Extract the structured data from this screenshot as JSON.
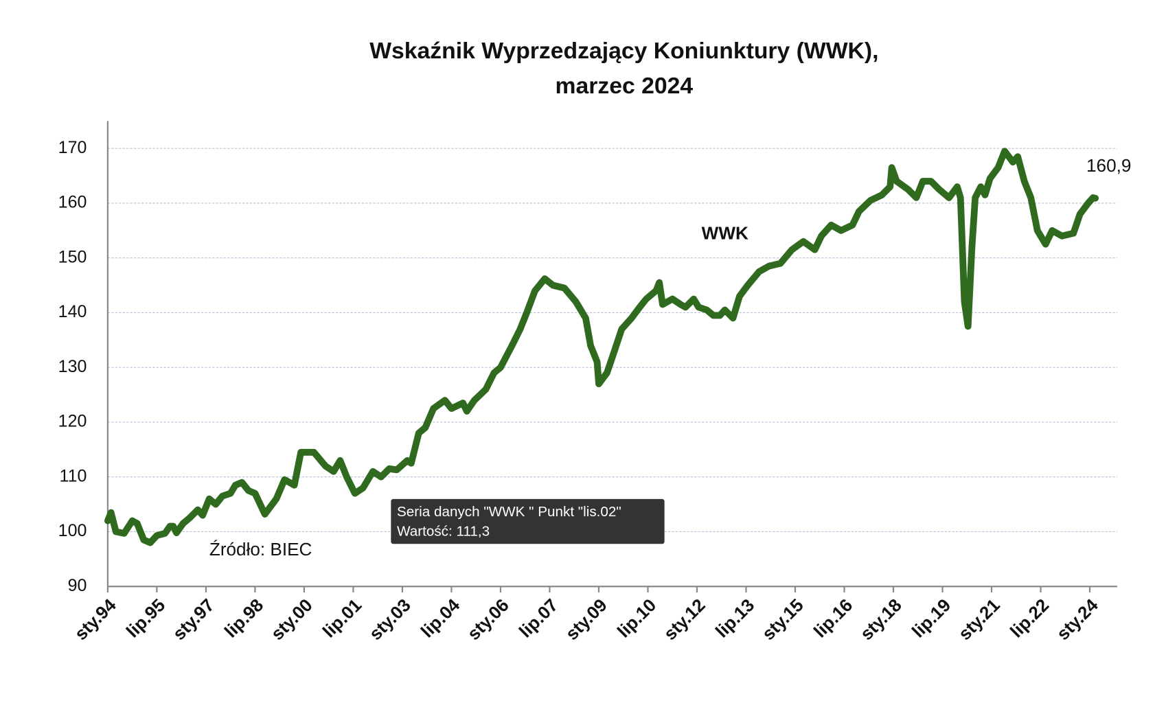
{
  "chart_data": {
    "type": "line",
    "title": [
      "Wskaźnik Wyprzedzający Koniunktury (WWK),",
      "marzec 2024"
    ],
    "annotations": [
      "Źródło: BIEC"
    ],
    "tooltip": [
      "Seria danych \"WWK \" Punkt \"lis.02\"",
      "Wartość: 111,3"
    ],
    "x": [
      1994.0,
      1994.1,
      1994.25,
      1994.5,
      1994.75,
      1994.9,
      1995.1,
      1995.3,
      1995.5,
      1995.75,
      1995.9,
      1996.0,
      1996.1,
      1996.3,
      1996.5,
      1996.75,
      1996.9,
      1997.1,
      1997.3,
      1997.5,
      1997.75,
      1997.9,
      1998.1,
      1998.3,
      1998.5,
      1998.8,
      1999.15,
      1999.4,
      1999.7,
      1999.9,
      2000.3,
      2000.65,
      2000.9,
      2001.1,
      2001.3,
      2001.55,
      2001.8,
      2002.1,
      2002.35,
      2002.6,
      2002.83,
      2003.15,
      2003.27,
      2003.5,
      2003.7,
      2003.95,
      2004.3,
      2004.5,
      2004.85,
      2004.97,
      2005.2,
      2005.55,
      2005.8,
      2006.0,
      2006.35,
      2006.6,
      2006.8,
      2007.05,
      2007.35,
      2007.6,
      2007.95,
      2008.3,
      2008.6,
      2008.75,
      2008.95,
      2009.0,
      2009.25,
      2009.45,
      2009.7,
      2010.0,
      2010.25,
      2010.45,
      2010.75,
      2010.85,
      2010.95,
      2011.25,
      2011.5,
      2011.65,
      2011.9,
      2012.05,
      2012.3,
      2012.5,
      2012.7,
      2012.85,
      2013.1,
      2013.3,
      2013.55,
      2013.9,
      2014.2,
      2014.55,
      2014.9,
      2015.25,
      2015.6,
      2015.8,
      2016.1,
      2016.4,
      2016.75,
      2016.95,
      2017.3,
      2017.65,
      2017.9,
      2017.95,
      2018.1,
      2018.45,
      2018.7,
      2018.9,
      2019.15,
      2019.4,
      2019.7,
      2019.95,
      2020.05,
      2020.17,
      2020.28,
      2020.4,
      2020.5,
      2020.67,
      2020.8,
      2020.95,
      2021.2,
      2021.4,
      2021.65,
      2021.8,
      2022.0,
      2022.2,
      2022.4,
      2022.65,
      2022.85,
      2023.15,
      2023.5,
      2023.7,
      2023.95,
      2024.1,
      2024.17
    ],
    "series": [
      {
        "name": "WWK",
        "color": "#2f6a1f",
        "values": [
          102,
          103.5,
          100,
          99.7,
          102,
          101.5,
          98.5,
          98,
          99.3,
          99.7,
          101,
          101,
          99.8,
          101.5,
          102.5,
          104,
          103,
          106,
          105,
          106.5,
          107,
          108.5,
          109,
          107.5,
          107,
          103.2,
          106,
          109.5,
          108.5,
          114.5,
          114.5,
          112,
          111,
          113,
          110,
          107,
          108,
          111,
          110,
          111.5,
          111.3,
          113,
          112.5,
          118,
          119,
          122.5,
          124,
          122.5,
          123.5,
          122,
          124,
          126,
          129,
          130,
          134,
          137,
          140,
          144,
          146.2,
          145,
          144.5,
          142,
          139,
          134,
          131,
          127,
          129,
          132.5,
          137,
          139,
          141,
          142.5,
          144,
          145.5,
          141.5,
          142.5,
          141.5,
          141,
          142.5,
          141,
          140.5,
          139.5,
          139.5,
          140.5,
          139,
          143,
          145,
          147.5,
          148.5,
          149,
          151.5,
          153,
          151.5,
          154,
          156,
          155,
          156,
          158.5,
          160.5,
          161.5,
          163,
          166.5,
          164,
          162.5,
          161,
          164,
          164,
          162.5,
          161,
          163,
          161,
          142,
          137.5,
          152,
          161,
          163,
          161.5,
          164.5,
          166.5,
          169.5,
          167.5,
          168.5,
          164,
          161,
          155,
          152.5,
          155,
          154,
          154.5,
          158,
          160,
          161,
          160.9
        ],
        "value_labels": [
          null,
          null,
          null,
          null,
          null,
          null,
          null,
          null,
          null,
          null,
          null,
          null,
          null,
          null,
          null,
          null,
          null,
          null,
          null,
          null,
          null,
          null,
          null,
          null,
          null,
          null,
          null,
          null,
          null,
          null,
          null,
          null,
          null,
          null,
          null,
          null,
          null,
          null,
          null,
          null,
          null,
          null,
          null,
          null,
          null,
          null,
          null,
          null,
          null,
          null,
          null,
          null,
          null,
          null,
          null,
          null,
          null,
          null,
          null,
          null,
          null,
          null,
          null,
          null,
          null,
          null,
          null,
          null,
          null,
          null,
          null,
          null,
          null,
          null,
          null,
          null,
          null,
          null,
          null,
          null,
          null,
          null,
          null,
          null,
          null,
          null,
          null,
          null,
          null,
          null,
          null,
          null,
          null,
          null,
          null,
          null,
          null,
          null,
          null,
          null,
          null,
          null,
          null,
          null,
          null,
          null,
          null,
          null,
          null,
          null,
          null,
          null,
          null,
          null,
          null,
          null,
          null,
          null,
          null,
          null,
          null,
          null,
          null,
          null,
          null,
          null,
          null,
          null,
          null,
          null,
          null,
          null,
          "160,9"
        ]
      }
    ],
    "xlim": [
      1994.0,
      2024.84
    ],
    "xticks": [
      {
        "value": 1994.0,
        "label": "sty.94"
      },
      {
        "value": 1995.5,
        "label": "lip.95"
      },
      {
        "value": 1997.0,
        "label": "sty.97"
      },
      {
        "value": 1998.5,
        "label": "lip.98"
      },
      {
        "value": 2000.0,
        "label": "sty.00"
      },
      {
        "value": 2001.5,
        "label": "lip.01"
      },
      {
        "value": 2003.0,
        "label": "sty.03"
      },
      {
        "value": 2004.5,
        "label": "lip.04"
      },
      {
        "value": 2006.0,
        "label": "sty.06"
      },
      {
        "value": 2007.5,
        "label": "lip.07"
      },
      {
        "value": 2009.0,
        "label": "sty.09"
      },
      {
        "value": 2010.5,
        "label": "lip.10"
      },
      {
        "value": 2012.0,
        "label": "sty.12"
      },
      {
        "value": 2013.5,
        "label": "lip.13"
      },
      {
        "value": 2015.0,
        "label": "sty.15"
      },
      {
        "value": 2016.5,
        "label": "lip.16"
      },
      {
        "value": 2018.0,
        "label": "sty.18"
      },
      {
        "value": 2019.5,
        "label": "lip.19"
      },
      {
        "value": 2021.0,
        "label": "sty.21"
      },
      {
        "value": 2022.5,
        "label": "lip.22"
      },
      {
        "value": 2024.0,
        "label": "sty.24"
      }
    ],
    "ylim": [
      90,
      175
    ],
    "yticks": [
      90,
      100,
      110,
      120,
      130,
      140,
      150,
      160,
      170
    ],
    "grid": true
  }
}
